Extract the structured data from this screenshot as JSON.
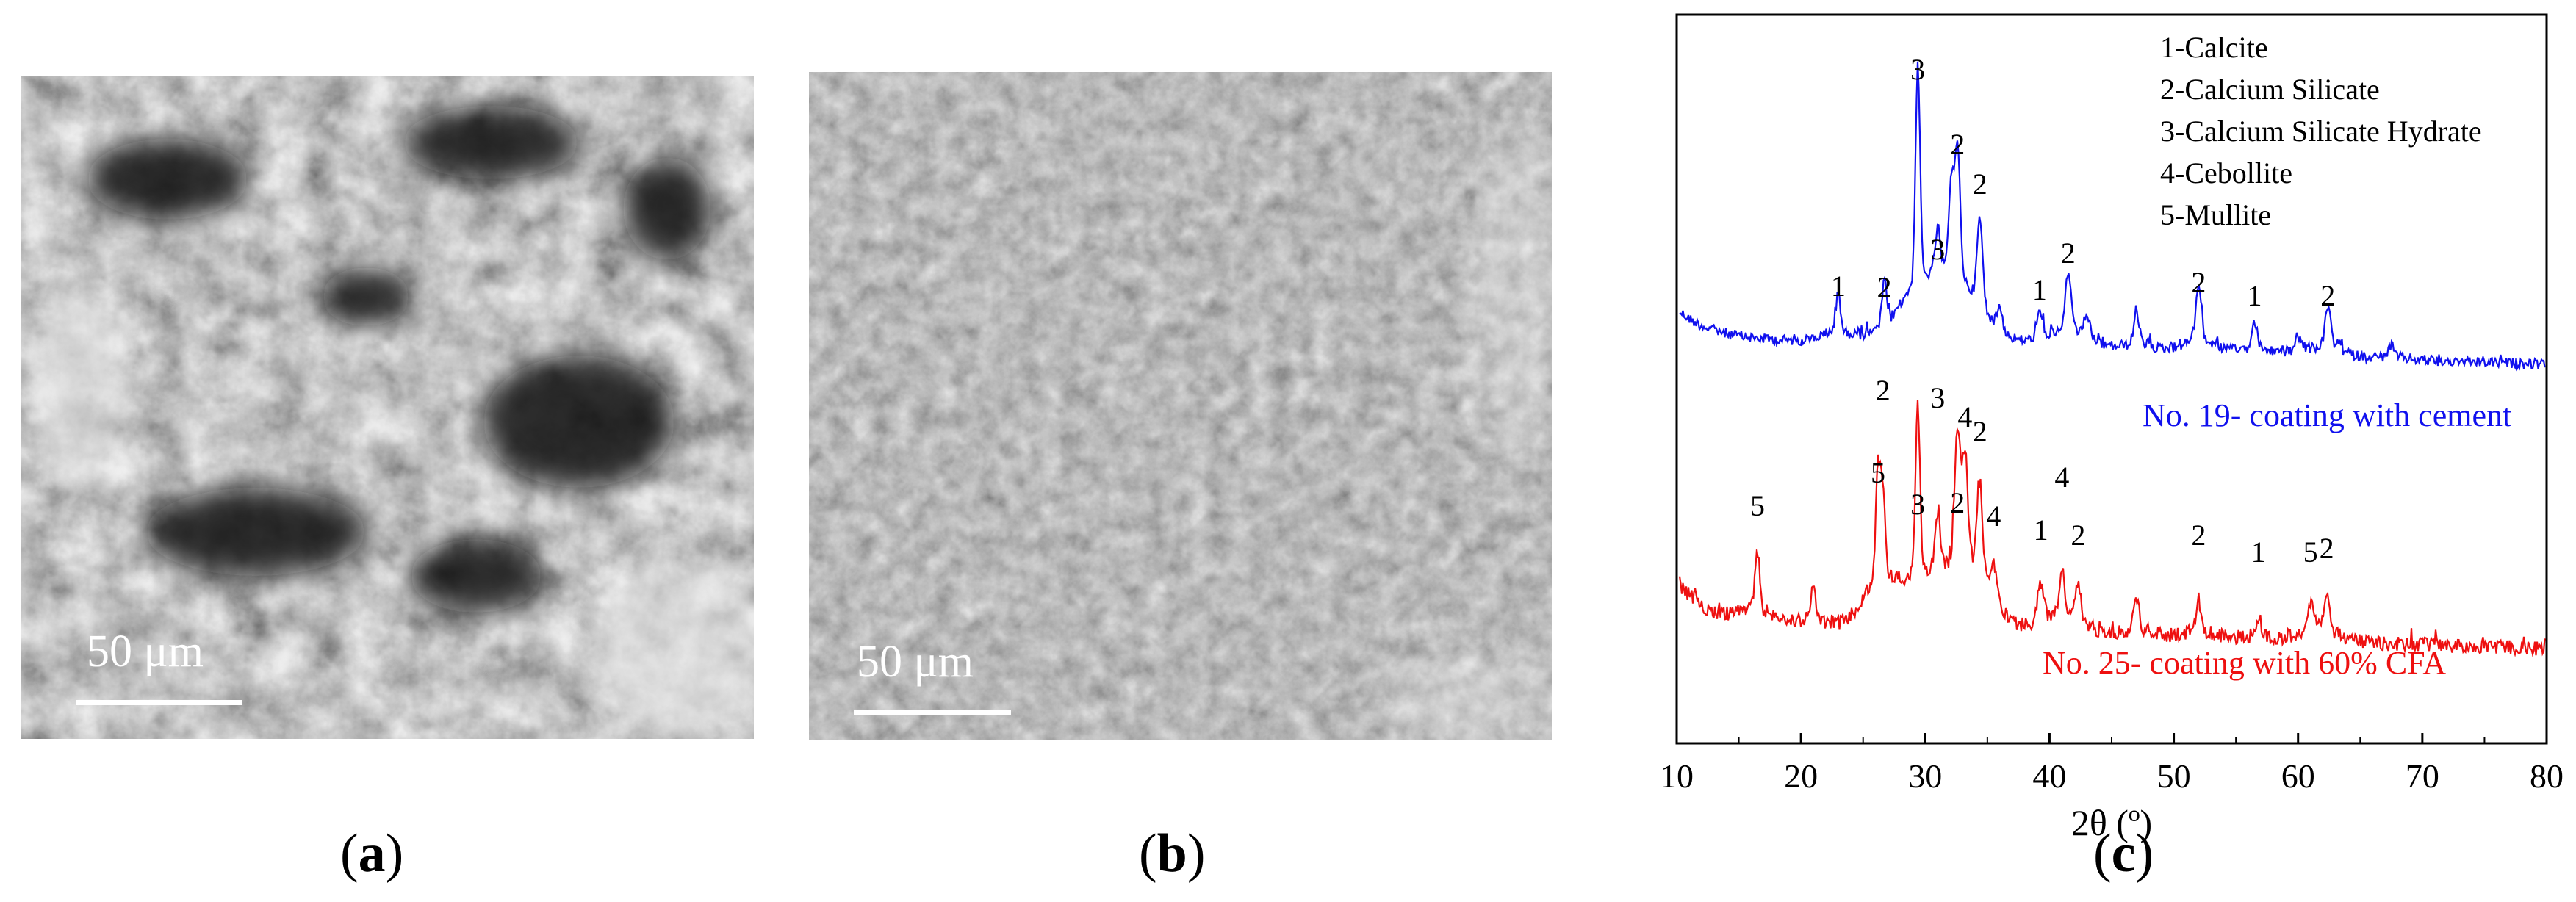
{
  "panels": {
    "a": {
      "caption_letter": "a",
      "scale_label": "50 μm"
    },
    "b": {
      "caption_letter": "b",
      "scale_label": "50 μm"
    },
    "c": {
      "caption_letter": "c"
    }
  },
  "chart_data": {
    "type": "line",
    "xlabel": "2θ (º)",
    "ylabel": "",
    "xlim": [
      10,
      80
    ],
    "xticks": [
      10,
      20,
      30,
      40,
      50,
      60,
      70,
      80
    ],
    "legend": {
      "placement": "top-right",
      "entries": [
        "1-Calcite",
        "2-Calcium Silicate",
        "3-Calcium Silicate Hydrate",
        "4-Cebollite",
        "5-Mullite"
      ]
    },
    "series": [
      {
        "name": "No. 19- coating with cement",
        "color": "#1010ee",
        "peak_labels": [
          {
            "x": 23.0,
            "label": "1"
          },
          {
            "x": 26.7,
            "label": "2"
          },
          {
            "x": 29.4,
            "label": "3"
          },
          {
            "x": 31.0,
            "label": "3"
          },
          {
            "x": 32.6,
            "label": "2"
          },
          {
            "x": 34.4,
            "label": "2"
          },
          {
            "x": 39.2,
            "label": "1"
          },
          {
            "x": 41.5,
            "label": "2"
          },
          {
            "x": 52.0,
            "label": "2"
          },
          {
            "x": 56.5,
            "label": "1"
          },
          {
            "x": 62.4,
            "label": "2"
          }
        ]
      },
      {
        "name": "No. 25- coating with 60% CFA",
        "color": "#ee1010",
        "peak_labels": [
          {
            "x": 16.5,
            "label": "5"
          },
          {
            "x": 26.2,
            "label": "5"
          },
          {
            "x": 26.6,
            "label": "2"
          },
          {
            "x": 29.4,
            "label": "3"
          },
          {
            "x": 31.0,
            "label": "3"
          },
          {
            "x": 32.6,
            "label": "2"
          },
          {
            "x": 33.2,
            "label": "4"
          },
          {
            "x": 34.4,
            "label": "2"
          },
          {
            "x": 35.5,
            "label": "4"
          },
          {
            "x": 39.3,
            "label": "1"
          },
          {
            "x": 41.0,
            "label": "4"
          },
          {
            "x": 42.3,
            "label": "2"
          },
          {
            "x": 52.0,
            "label": "2"
          },
          {
            "x": 56.8,
            "label": "1"
          },
          {
            "x": 61.0,
            "label": "5"
          },
          {
            "x": 62.3,
            "label": "2"
          }
        ]
      }
    ]
  }
}
